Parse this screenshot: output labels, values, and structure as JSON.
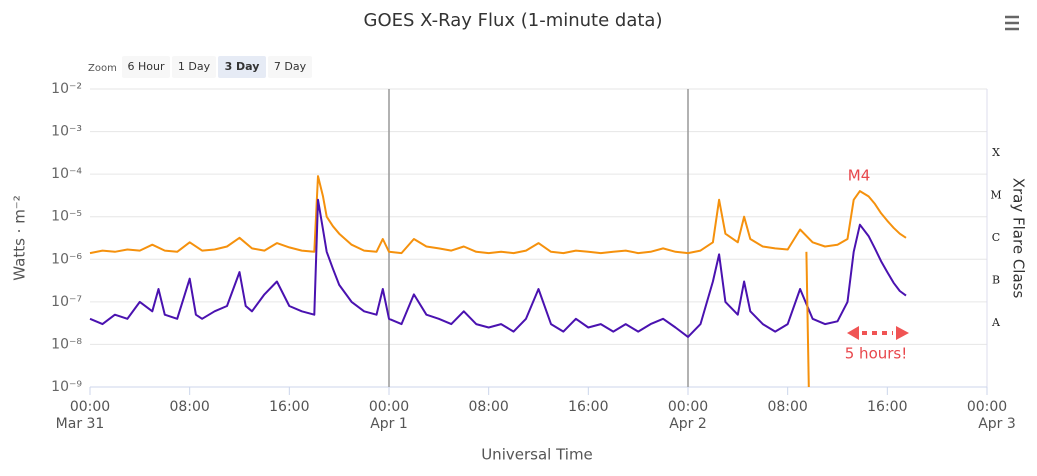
{
  "chart_data": {
    "type": "line",
    "title": "GOES X-Ray Flux (1-minute data)",
    "x_label": "Universal Time",
    "y_label": "Watts · m⁻²",
    "y2_label": "Xray Flare Class",
    "zoom_label": "Zoom",
    "zoom_buttons": [
      "6 Hour",
      "1 Day",
      "3 Day",
      "7 Day"
    ],
    "zoom_selected": 2,
    "log_y": true,
    "grid": true,
    "xlim": [
      0,
      72
    ],
    "ylim": [
      1e-09,
      0.01
    ],
    "xticks": [
      {
        "value": 0,
        "label": "00:00"
      },
      {
        "value": 8,
        "label": "08:00"
      },
      {
        "value": 16,
        "label": "16:00"
      },
      {
        "value": 24,
        "label": "00:00"
      },
      {
        "value": 32,
        "label": "08:00"
      },
      {
        "value": 40,
        "label": "16:00"
      },
      {
        "value": 48,
        "label": "00:00"
      },
      {
        "value": 56,
        "label": "08:00"
      },
      {
        "value": 64,
        "label": "16:00"
      },
      {
        "value": 72,
        "label": "00:00"
      }
    ],
    "date_labels": [
      {
        "value": 0,
        "label": "Mar 31"
      },
      {
        "value": 24,
        "label": "Apr 1"
      },
      {
        "value": 48,
        "label": "Apr 2"
      },
      {
        "value": 72,
        "label": "Apr 3"
      }
    ],
    "day_lines": [
      24,
      48
    ],
    "yticks": [
      {
        "value": 1e-09,
        "label": "10⁻⁹"
      },
      {
        "value": 1e-08,
        "label": "10⁻⁸"
      },
      {
        "value": 1e-07,
        "label": "10⁻⁷"
      },
      {
        "value": 1e-06,
        "label": "10⁻⁶"
      },
      {
        "value": 1e-05,
        "label": "10⁻⁵"
      },
      {
        "value": 0.0001,
        "label": "10⁻⁴"
      },
      {
        "value": 0.001,
        "label": "10⁻³"
      },
      {
        "value": 0.01,
        "label": "10⁻²"
      }
    ],
    "class_labels": [
      {
        "value": 1e-08,
        "label": "A"
      },
      {
        "value": 1e-07,
        "label": "B"
      },
      {
        "value": 1e-06,
        "label": "C"
      },
      {
        "value": 1e-05,
        "label": "M"
      },
      {
        "value": 0.0001,
        "label": "X"
      }
    ],
    "annotations": [
      "M4",
      "5 hours!"
    ],
    "series": [
      {
        "color": "#f5910d",
        "x": [
          0,
          1,
          2,
          3,
          4,
          5,
          6,
          7,
          8,
          9,
          10,
          11,
          12,
          13,
          14,
          15,
          16,
          17,
          18,
          18.3,
          18.7,
          19,
          19.5,
          20,
          21,
          22,
          23,
          23.5,
          24,
          25,
          26,
          27,
          28,
          29,
          30,
          31,
          32,
          33,
          34,
          35,
          36,
          37,
          38,
          39,
          40,
          41,
          42,
          43,
          44,
          45,
          46,
          47,
          48,
          49,
          50,
          50.5,
          51,
          52,
          52.5,
          53,
          54,
          55,
          56,
          57,
          58,
          59,
          60,
          60.8,
          61.3,
          61.8,
          62.5,
          63,
          63.5,
          64,
          64.5,
          65,
          65.5
        ],
        "values": [
          1.4e-06,
          1.6e-06,
          1.5e-06,
          1.7e-06,
          1.6e-06,
          2.2e-06,
          1.6e-06,
          1.5e-06,
          2.5e-06,
          1.6e-06,
          1.7e-06,
          2e-06,
          3.2e-06,
          1.8e-06,
          1.6e-06,
          2.4e-06,
          1.9e-06,
          1.6e-06,
          1.5e-06,
          9e-05,
          3e-05,
          1e-05,
          6e-06,
          4e-06,
          2.2e-06,
          1.6e-06,
          1.5e-06,
          3e-06,
          1.5e-06,
          1.4e-06,
          3e-06,
          2e-06,
          1.8e-06,
          1.6e-06,
          2e-06,
          1.5e-06,
          1.4e-06,
          1.5e-06,
          1.4e-06,
          1.6e-06,
          2.4e-06,
          1.5e-06,
          1.4e-06,
          1.6e-06,
          1.5e-06,
          1.4e-06,
          1.5e-06,
          1.6e-06,
          1.4e-06,
          1.5e-06,
          1.8e-06,
          1.5e-06,
          1.4e-06,
          1.6e-06,
          2.5e-06,
          2.5e-05,
          4e-06,
          2.5e-06,
          1e-05,
          3e-06,
          2e-06,
          1.8e-06,
          1.7e-06,
          5e-06,
          2.5e-06,
          2e-06,
          2.2e-06,
          3e-06,
          2.5e-05,
          4e-05,
          3e-05,
          2e-05,
          1.2e-05,
          8e-06,
          5.5e-06,
          4e-06,
          3.2e-06
        ]
      },
      {
        "color": "#4a12b0",
        "x": [
          0,
          1,
          2,
          3,
          4,
          5,
          5.5,
          6,
          7,
          8,
          8.5,
          9,
          10,
          11,
          12,
          12.5,
          13,
          14,
          15,
          16,
          17,
          18,
          18.3,
          18.7,
          19,
          19.5,
          20,
          21,
          22,
          23,
          23.5,
          24,
          25,
          26,
          27,
          28,
          29,
          30,
          31,
          32,
          33,
          34,
          35,
          36,
          37,
          38,
          39,
          40,
          41,
          42,
          43,
          44,
          45,
          46,
          47,
          48,
          49,
          50,
          50.5,
          51,
          52,
          52.5,
          53,
          54,
          55,
          56,
          57,
          58,
          59,
          60,
          60.8,
          61.3,
          61.8,
          62.5,
          63,
          63.5,
          64,
          64.5,
          65,
          65.5
        ],
        "values": [
          4e-08,
          3e-08,
          5e-08,
          4e-08,
          1e-07,
          6e-08,
          2e-07,
          5e-08,
          4e-08,
          3.5e-07,
          5e-08,
          4e-08,
          6e-08,
          8e-08,
          5e-07,
          8e-08,
          6e-08,
          1.5e-07,
          3e-07,
          8e-08,
          6e-08,
          5e-08,
          2.5e-05,
          5e-06,
          1.5e-06,
          6e-07,
          2.5e-07,
          1e-07,
          6e-08,
          5e-08,
          2e-07,
          4e-08,
          3e-08,
          1.5e-07,
          5e-08,
          4e-08,
          3e-08,
          6e-08,
          3e-08,
          2.5e-08,
          3e-08,
          2e-08,
          4e-08,
          2e-07,
          3e-08,
          2e-08,
          4e-08,
          2.5e-08,
          3e-08,
          2e-08,
          3e-08,
          2e-08,
          3e-08,
          4e-08,
          2.5e-08,
          1.5e-08,
          3e-08,
          3e-07,
          1.3e-06,
          1e-07,
          5e-08,
          3e-07,
          6e-08,
          3e-08,
          2e-08,
          3e-08,
          2e-07,
          4e-08,
          3e-08,
          3.5e-08,
          1e-07,
          1.5e-06,
          6.5e-06,
          3.5e-06,
          1.8e-06,
          9e-07,
          5e-07,
          2.8e-07,
          1.8e-07,
          1.4e-07
        ]
      },
      {
        "color": "#f5910d",
        "x": [
          57.5,
          57.7
        ],
        "values": [
          1.5e-06,
          1e-09
        ]
      }
    ]
  }
}
